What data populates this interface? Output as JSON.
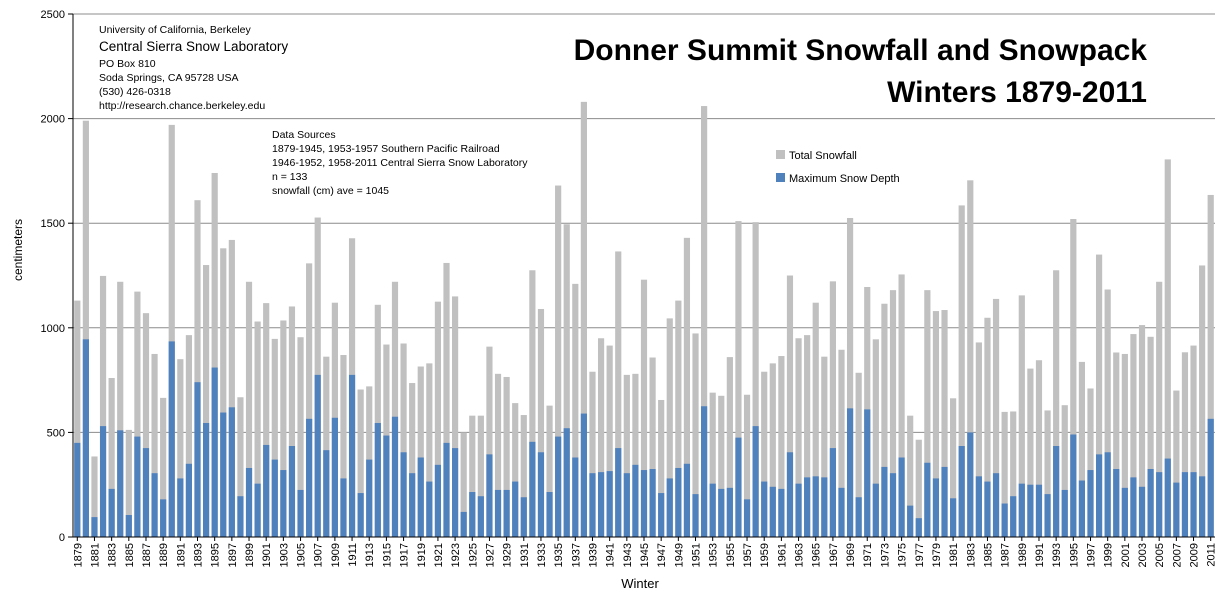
{
  "chart_data": {
    "type": "bar",
    "title_line1": "Donner Summit Snowfall and Snowpack",
    "title_line2": "Winters 1879-2011",
    "xlabel": "Winter",
    "ylabel": "centimeters",
    "ylim": [
      0,
      2500
    ],
    "yticks": [
      0,
      500,
      1000,
      1500,
      2000,
      2500
    ],
    "grid": true,
    "legend_position": "top-right",
    "x_start": 1879,
    "x_end": 2011,
    "tick_labels": [
      "1879",
      "1881",
      "1883",
      "1885",
      "1887",
      "1889",
      "1891",
      "1893",
      "1895",
      "1897",
      "1899",
      "1901",
      "1903",
      "1905",
      "1907",
      "1909",
      "1911",
      "1913",
      "1915",
      "1917",
      "1919",
      "1921",
      "1923",
      "1925",
      "1927",
      "1929",
      "1931",
      "1933",
      "1935",
      "1937",
      "1939",
      "1941",
      "1943",
      "1945",
      "1947",
      "1949",
      "1951",
      "1953",
      "1955",
      "1957",
      "1959",
      "1961",
      "1963",
      "1965",
      "1967",
      "1969",
      "1971",
      "1973",
      "1975",
      "1977",
      "1979",
      "1981",
      "1983",
      "1985",
      "1987",
      "1989",
      "1991",
      "1993",
      "1995",
      "1997",
      "1999",
      "2001",
      "2003",
      "2005",
      "2007",
      "2009",
      "2011"
    ],
    "series": [
      {
        "name": "Total Snowfall",
        "color": "#c0c0c0",
        "values": [
          1130,
          1990,
          385,
          1248,
          760,
          1220,
          512,
          1173,
          1070,
          875,
          665,
          1970,
          850,
          965,
          1610,
          1300,
          1740,
          1380,
          1420,
          668,
          1220,
          1030,
          1118,
          947,
          1035,
          1102,
          955,
          1308,
          1527,
          862,
          1120,
          870,
          1428,
          705,
          720,
          1110,
          920,
          1220,
          925,
          736,
          815,
          830,
          1125,
          1310,
          1150,
          500,
          580,
          580,
          910,
          780,
          765,
          640,
          583,
          1275,
          1090,
          628,
          1680,
          1495,
          1210,
          2080,
          790,
          950,
          915,
          1365,
          775,
          780,
          1230,
          858,
          655,
          1045,
          1130,
          1430,
          973,
          2060,
          690,
          675,
          860,
          1510,
          680,
          1505,
          790,
          830,
          865,
          1250,
          950,
          965,
          1120,
          862,
          1222,
          895,
          1525,
          785,
          1195,
          945,
          1115,
          1180,
          1255,
          580,
          465,
          1180,
          1080,
          1085,
          663,
          1585,
          1705,
          930,
          1048,
          1138,
          598,
          600,
          1155,
          805,
          845,
          605,
          1275,
          630,
          1520,
          837,
          710,
          1350,
          1183,
          882,
          875,
          970,
          1013,
          957,
          1220,
          1805,
          700,
          883,
          915,
          1298,
          1635
        ]
      },
      {
        "name": "Maximum Snow Depth",
        "color": "#4f81bd",
        "values": [
          450,
          945,
          95,
          530,
          230,
          510,
          105,
          480,
          425,
          305,
          180,
          935,
          280,
          350,
          740,
          545,
          810,
          595,
          620,
          195,
          330,
          255,
          440,
          370,
          320,
          435,
          225,
          565,
          775,
          415,
          570,
          280,
          775,
          210,
          370,
          545,
          485,
          575,
          405,
          305,
          380,
          265,
          345,
          450,
          425,
          120,
          215,
          195,
          395,
          225,
          225,
          265,
          190,
          455,
          405,
          215,
          480,
          520,
          380,
          590,
          305,
          310,
          315,
          425,
          305,
          345,
          320,
          325,
          210,
          280,
          330,
          350,
          205,
          625,
          255,
          230,
          235,
          475,
          180,
          530,
          265,
          240,
          230,
          405,
          255,
          285,
          290,
          285,
          425,
          235,
          615,
          190,
          610,
          255,
          335,
          305,
          380,
          150,
          90,
          355,
          280,
          335,
          185,
          435,
          500,
          290,
          265,
          305,
          160,
          195,
          255,
          250,
          250,
          205,
          435,
          225,
          490,
          270,
          320,
          395,
          405,
          325,
          235,
          285,
          240,
          325,
          310,
          375,
          260,
          310,
          310,
          290,
          565
        ]
      }
    ]
  },
  "info": {
    "line1": "University of California, Berkeley",
    "line2": "Central Sierra Snow Laboratory",
    "line3": "PO Box 810",
    "line4": "Soda Springs, CA 95728 USA",
    "line5": "(530) 426-0318",
    "line6": "http://research.chance.berkeley.edu"
  },
  "sources": {
    "line1": "Data Sources",
    "line2": "1879-1945, 1953-1957 Southern Pacific Railroad",
    "line3": "1946-1952, 1958-2011 Central Sierra Snow Laboratory",
    "line4": "n = 133",
    "line5": "snowfall (cm) ave = 1045"
  }
}
